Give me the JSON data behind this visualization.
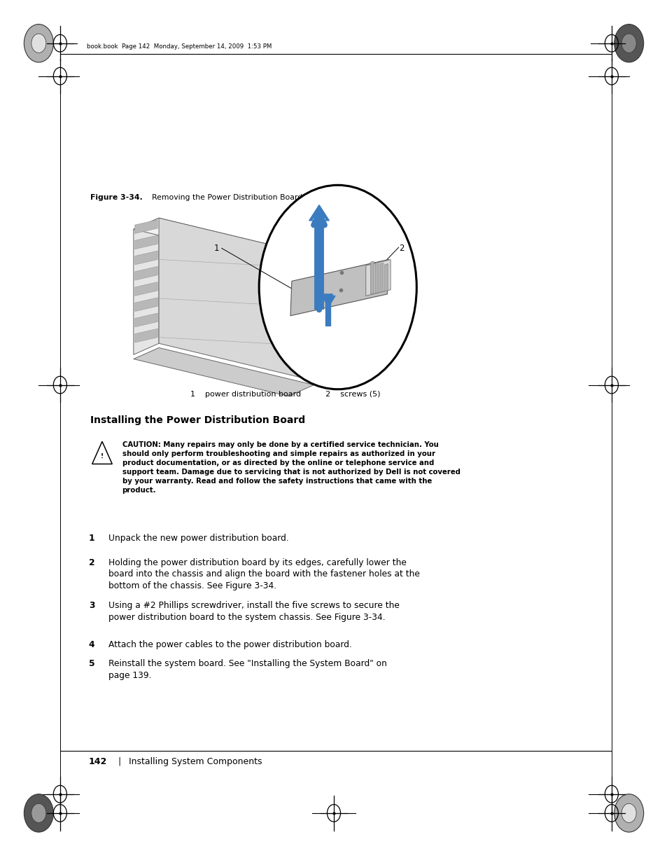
{
  "page_width": 9.54,
  "page_height": 12.35,
  "bg_color": "#ffffff",
  "header_text": "book.book  Page 142  Monday, September 14, 2009  1:53 PM",
  "figure_label": "Figure 3-34.",
  "figure_title": "Removing the Power Distribution Board",
  "legend_line1": "1    power distribution board          2    screws (5)",
  "section_title": "Installing the Power Distribution Board",
  "caution_bold_start": "CAUTION: ",
  "caution_body": "Many repairs may only be done by a certified service technician. You\nshould only perform troubleshooting and simple repairs as authorized in your\nproduct documentation, or as directed by the online or telephone service and\nsupport team. Damage due to servicing that is not authorized by Dell is not covered\nby your warranty. Read and follow the safety instructions that came with the\nproduct.",
  "steps": [
    {
      "num": "1",
      "text": "Unpack the new power distribution board."
    },
    {
      "num": "2",
      "text": "Holding the power distribution board by its edges, carefully lower the\nboard into the chassis and align the board with the fastener holes at the\nbottom of the chassis. See Figure 3-34."
    },
    {
      "num": "3",
      "text": "Using a #2 Phillips screwdriver, install the five screws to secure the\npower distribution board to the system chassis. See Figure 3-34."
    },
    {
      "num": "4",
      "text": "Attach the power cables to the power distribution board."
    },
    {
      "num": "5",
      "text": "Reinstall the system board. See \"Installing the System Board\" on\npage 139."
    }
  ],
  "footer_page": "142",
  "footer_sep": "|",
  "footer_text": "Installing System Components",
  "arrow_color": "#3b7bbf",
  "arrow_color2": "#3b7bbf"
}
